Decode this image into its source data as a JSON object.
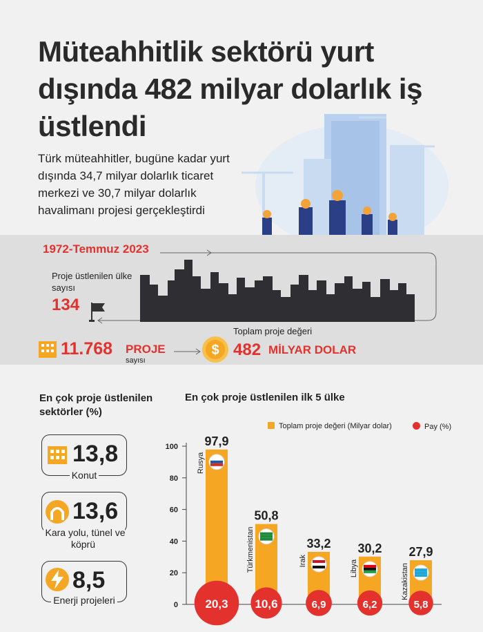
{
  "title": "Müteahhitlik sektörü yurt dışında 482 milyar dolarlık iş üstlendi",
  "intro": "Türk müteahhitler, bugüne kadar yurt dışında 34,7 milyar dolarlık ticaret merkezi ve 30,7 milyar dolarlık havalimanı projesi gerçekleştirdi",
  "period": "1972-Temmuz 2023",
  "countries": {
    "label": "Proje üstlenilen ülke sayısı",
    "value": "134"
  },
  "projects": {
    "value": "11.768",
    "word": "PROJE",
    "sub": "sayısı"
  },
  "total_value": {
    "label": "Toplam proje değeri",
    "value": "482",
    "unit": "MİLYAR DOLAR"
  },
  "sectors": {
    "title": "En çok proje üstlenilen sektörler (%)",
    "items": [
      {
        "value": "13,8",
        "label": "Konut",
        "icon": "building-icon"
      },
      {
        "value": "13,6",
        "label": "Kara yolu, tünel ve köprü",
        "icon": "tunnel-icon"
      },
      {
        "value": "8,5",
        "label": "Enerji projeleri",
        "icon": "lightning-icon"
      }
    ]
  },
  "colors": {
    "accent": "#e3322d",
    "bar": "#f5a623",
    "skyline": "#2e2e33",
    "band": "#dedede"
  },
  "chart_data": {
    "type": "bar",
    "title": "En çok proje üstlenilen ilk 5 ülke",
    "categories": [
      "Rusya",
      "Türkmenistan",
      "Irak",
      "Libya",
      "Kazakistan"
    ],
    "series": [
      {
        "name": "Toplam proje değeri (Milyar dolar)",
        "values": [
          97.9,
          50.8,
          33.2,
          30.2,
          27.9
        ],
        "labels": [
          "97,9",
          "50,8",
          "33,2",
          "30,2",
          "27,9"
        ]
      },
      {
        "name": "Pay (%)",
        "values": [
          20.3,
          10.6,
          6.9,
          6.2,
          5.8
        ],
        "labels": [
          "20,3",
          "10,6",
          "6,9",
          "6,2",
          "5,8"
        ]
      }
    ],
    "y_ticks": [
      "0",
      "20",
      "40",
      "60",
      "80",
      "100"
    ],
    "ylim": [
      0,
      100
    ],
    "legend": "top-right",
    "grid": false
  }
}
